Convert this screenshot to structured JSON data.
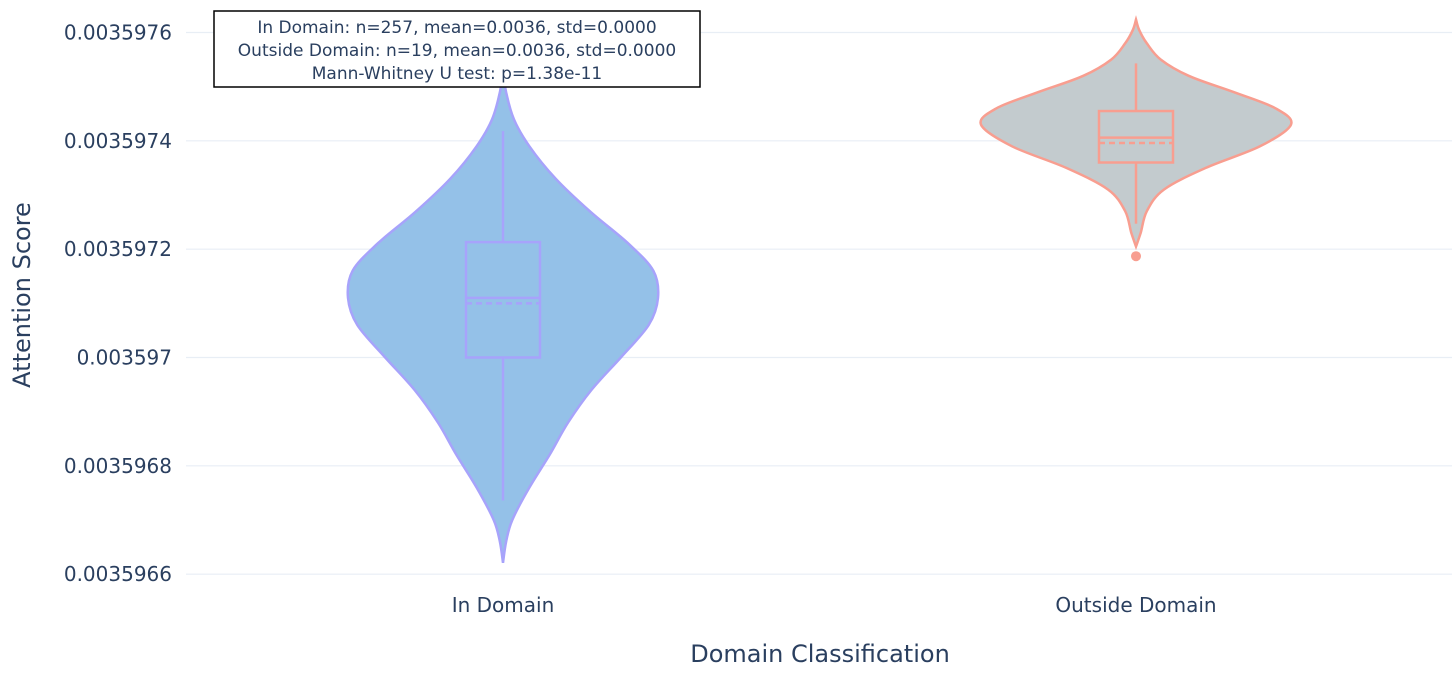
{
  "chart_data": {
    "type": "violin",
    "xlabel": "Domain Classification",
    "ylabel": "Attention Score",
    "categories": [
      "In Domain",
      "Outside Domain"
    ],
    "ylim": [
      0.00359658,
      0.00359766
    ],
    "yticks": [
      0.0035966,
      0.0035968,
      0.003597,
      0.0035972,
      0.0035974,
      0.0035976
    ],
    "ytick_labels": [
      "0.0035966",
      "0.0035968",
      "0.003597",
      "0.0035972",
      "0.0035974",
      "0.0035976"
    ],
    "grid": true,
    "legend": false,
    "series": [
      {
        "category": "In Domain",
        "fill_color": "#94c1e8",
        "line_color": "#a7a3fb",
        "y_min": 0.003596621,
        "y_max": 0.003597529,
        "box": {
          "q1": 0.003597,
          "median": 0.00359711,
          "mean": 0.0035971,
          "q3": 0.003597213,
          "whisker_low": 0.003596736,
          "whisker_high": 0.003597418
        },
        "outliers": [],
        "density": [
          [
            0.003596621,
            0.0
          ],
          [
            0.00359666,
            0.02
          ],
          [
            0.0035967,
            0.06
          ],
          [
            0.00359676,
            0.17
          ],
          [
            0.00359682,
            0.3
          ],
          [
            0.00359688,
            0.42
          ],
          [
            0.00359694,
            0.57
          ],
          [
            0.003597,
            0.76
          ],
          [
            0.00359706,
            0.94
          ],
          [
            0.00359711,
            1.0
          ],
          [
            0.00359716,
            0.97
          ],
          [
            0.00359721,
            0.81
          ],
          [
            0.00359727,
            0.56
          ],
          [
            0.00359733,
            0.34
          ],
          [
            0.00359739,
            0.17
          ],
          [
            0.00359744,
            0.07
          ],
          [
            0.00359749,
            0.02
          ],
          [
            0.003597529,
            0.0
          ]
        ]
      },
      {
        "category": "Outside Domain",
        "fill_color": "#c3cbce",
        "line_color": "#f89e90",
        "y_min": 0.003597205,
        "y_max": 0.003597624,
        "box": {
          "q1": 0.00359736,
          "median": 0.003597406,
          "mean": 0.003597396,
          "q3": 0.003597455,
          "whisker_low": 0.003597247,
          "whisker_high": 0.003597543
        },
        "outliers": [
          0.003597187
        ],
        "density": [
          [
            0.003597205,
            0.0
          ],
          [
            0.00359723,
            0.03
          ],
          [
            0.00359727,
            0.07
          ],
          [
            0.00359731,
            0.18
          ],
          [
            0.00359735,
            0.45
          ],
          [
            0.00359739,
            0.8
          ],
          [
            0.00359743,
            1.0
          ],
          [
            0.00359746,
            0.9
          ],
          [
            0.00359749,
            0.63
          ],
          [
            0.00359752,
            0.34
          ],
          [
            0.00359755,
            0.16
          ],
          [
            0.00359758,
            0.07
          ],
          [
            0.003597605,
            0.02
          ],
          [
            0.003597624,
            0.0
          ]
        ]
      }
    ],
    "annotation": [
      "In Domain: n=257, mean=0.0036, std=0.0000",
      "Outside Domain: n=19, mean=0.0036, std=0.0000",
      "Mann-Whitney U test: p=1.38e-11"
    ]
  }
}
